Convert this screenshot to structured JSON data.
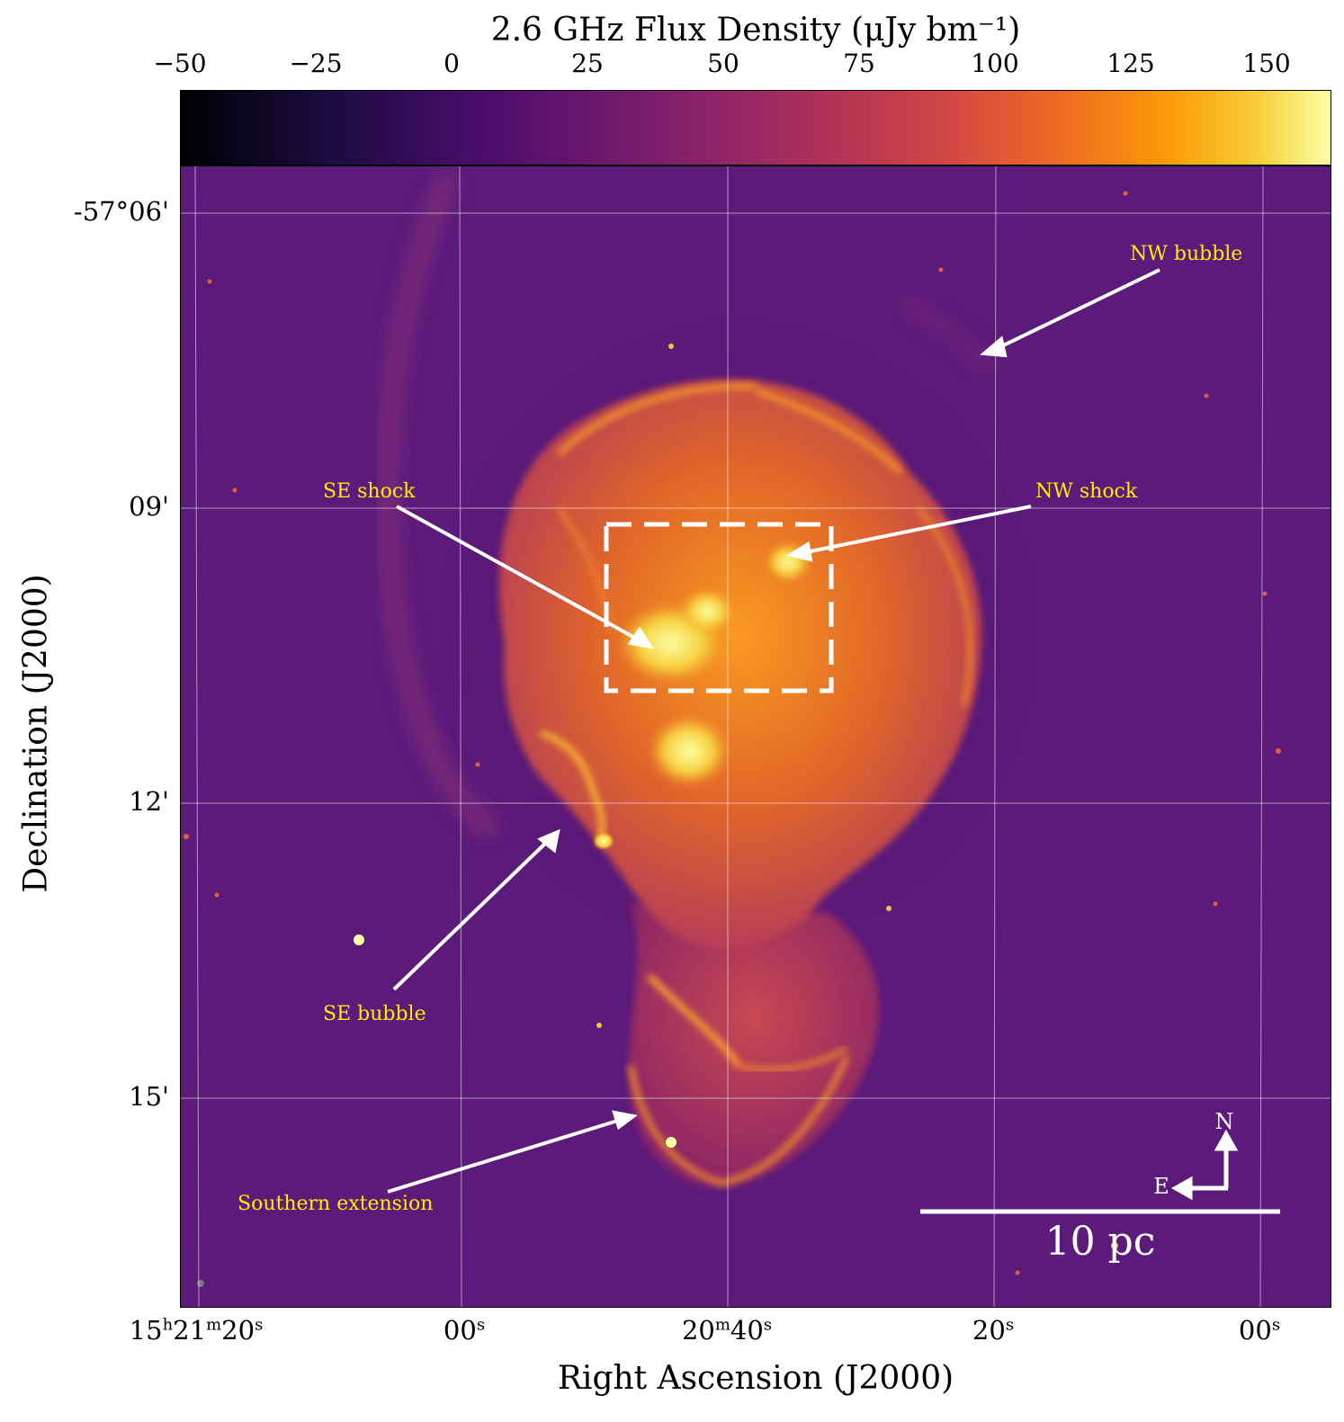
{
  "colorbar": {
    "title": "2.6 GHz Flux Density (μJy bm⁻¹)",
    "ticks": [
      "−50",
      "−25",
      "0",
      "25",
      "50",
      "75",
      "100",
      "125",
      "150"
    ],
    "min": -50,
    "max": 160
  },
  "axes": {
    "xlabel": "Right Ascension (J2000)",
    "ylabel": "Declination (J2000)",
    "ra_ticks": [
      {
        "h": "15",
        "m": "21",
        "s": "20"
      },
      {
        "h": "",
        "m": "",
        "s": "00"
      },
      {
        "h": "",
        "m": "20",
        "s": "40"
      },
      {
        "h": "",
        "m": "",
        "s": "20"
      },
      {
        "h": "",
        "m": "",
        "s": "00"
      }
    ],
    "dec_ticks": [
      "-57°06'",
      "09'",
      "12'",
      "15'"
    ]
  },
  "annotations": {
    "nw_bubble": "NW bubble",
    "se_shock": "SE shock",
    "nw_shock": "NW shock",
    "se_bubble": "SE bubble",
    "southern_extension": "Southern extension"
  },
  "compass": {
    "north": "N",
    "east": "E"
  },
  "scalebar": {
    "label": "10 pc"
  }
}
